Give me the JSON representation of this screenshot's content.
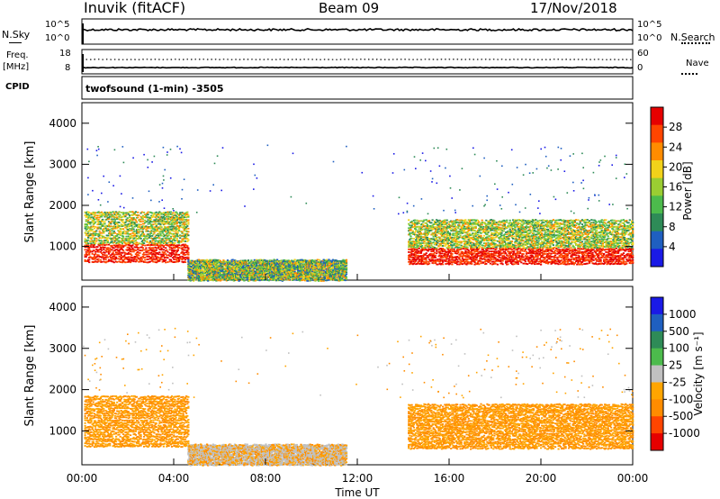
{
  "header": {
    "station": "Inuvik (fitACF)",
    "beam": "Beam 09",
    "date": "17/Nov/2018"
  },
  "panel_labels": {
    "nsky": "N.Sky",
    "nsearch": "N.Search",
    "freq_line1": "Freq.",
    "freq_line2": "[MHz]",
    "nave": "Nave",
    "cpid": "CPID",
    "cpid_text": "twofsound (1-min) -3505"
  },
  "top_axes": {
    "noise_left_ticks": [
      "10^5",
      "10^0"
    ],
    "noise_right_ticks": [
      "10^5",
      "10^0"
    ],
    "freq_left_ticks": [
      "18",
      "8"
    ],
    "freq_right_ticks": [
      "60",
      "0"
    ]
  },
  "colors": {
    "power_scale": [
      "#1a1ae6",
      "#1f5fc0",
      "#2e8b57",
      "#4cbb4c",
      "#9acd32",
      "#f2d21a",
      "#ff8c00",
      "#ff4500",
      "#e60000"
    ],
    "velocity_scale": [
      "#e60000",
      "#ff4500",
      "#ff8c00",
      "#ffa500",
      "#c0c0c0",
      "#4cbb4c",
      "#2e8b57",
      "#1f5fc0",
      "#1a1ae6"
    ]
  },
  "chart_data": [
    {
      "type": "heatmap",
      "panel": "power",
      "xlabel": "Time UT",
      "ylabel": "Slant Range [km]",
      "colorbar_label": "Power [dB]",
      "colorbar_ticks": [
        "28",
        "24",
        "20",
        "16",
        "12",
        "8",
        "4"
      ],
      "x_ticks": [
        "00:00",
        "04:00",
        "08:00",
        "12:00",
        "16:00",
        "20:00",
        "00:00"
      ],
      "y_ticks": [
        "4000",
        "3000",
        "2000",
        "1000"
      ],
      "xlim_hours": [
        0,
        24
      ],
      "ylim_km": [
        180,
        4500
      ],
      "echo_regions": [
        {
          "t_start": 0.1,
          "t_end": 4.6,
          "r_low": 650,
          "r_high": 1900,
          "level": "strong"
        },
        {
          "t_start": 4.6,
          "t_end": 11.5,
          "r_low": 200,
          "r_high": 700,
          "level": "mixed"
        },
        {
          "t_start": 14.2,
          "t_end": 24.0,
          "r_low": 600,
          "r_high": 1700,
          "level": "strong"
        }
      ]
    },
    {
      "type": "heatmap",
      "panel": "velocity",
      "xlabel": "Time UT",
      "ylabel": "Slant Range [km]",
      "colorbar_label": "Velocity [m s⁻¹]",
      "colorbar_ticks": [
        "1000",
        "500",
        "100",
        "25",
        "-25",
        "-100",
        "-500",
        "-1000"
      ],
      "x_ticks": [
        "00:00",
        "04:00",
        "08:00",
        "12:00",
        "16:00",
        "20:00",
        "00:00"
      ],
      "y_ticks": [
        "4000",
        "3000",
        "2000",
        "1000"
      ],
      "xlim_hours": [
        0,
        24
      ],
      "ylim_km": [
        180,
        4500
      ],
      "echo_regions": [
        {
          "t_start": 0.1,
          "t_end": 4.6,
          "r_low": 650,
          "r_high": 1900,
          "level": "negative"
        },
        {
          "t_start": 4.6,
          "t_end": 11.5,
          "r_low": 200,
          "r_high": 700,
          "level": "mixed"
        },
        {
          "t_start": 14.2,
          "t_end": 24.0,
          "r_low": 600,
          "r_high": 1700,
          "level": "negative"
        }
      ]
    }
  ]
}
